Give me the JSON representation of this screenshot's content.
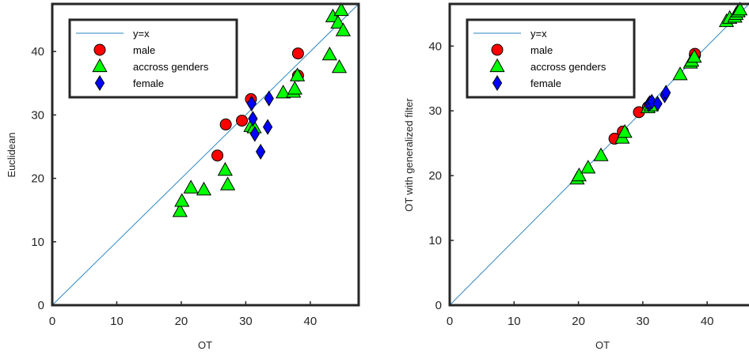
{
  "colors": {
    "identity_line": "#2E86C1",
    "male": "#FF0000",
    "across": "#00FF00",
    "female": "#0000FF",
    "axes": "#262626"
  },
  "chart_data": [
    {
      "type": "scatter",
      "xlabel": "OT",
      "ylabel": "Euclidean",
      "xlim": [
        0,
        47.5
      ],
      "ylim": [
        0,
        47.5
      ],
      "xticks": [
        0,
        10,
        20,
        30,
        40
      ],
      "yticks": [
        0,
        10,
        20,
        30,
        40
      ],
      "legend_position": "top-left",
      "series": [
        {
          "name": "y=x",
          "kind": "line",
          "points": [
            [
              0,
              0
            ],
            [
              47.5,
              47.5
            ]
          ]
        },
        {
          "name": "male",
          "kind": "circle",
          "points": [
            [
              25.6,
              23.6
            ],
            [
              26.9,
              28.5
            ],
            [
              29.4,
              29.1
            ],
            [
              30.8,
              32.5
            ],
            [
              38.1,
              36.2
            ],
            [
              38.1,
              39.7
            ]
          ]
        },
        {
          "name": "accross genders",
          "kind": "triangle",
          "points": [
            [
              19.8,
              14.8
            ],
            [
              20.1,
              16.4
            ],
            [
              21.5,
              18.5
            ],
            [
              23.5,
              18.2
            ],
            [
              26.8,
              21.3
            ],
            [
              27.2,
              19.0
            ],
            [
              30.8,
              28.2
            ],
            [
              31.3,
              28.0
            ],
            [
              35.8,
              33.5
            ],
            [
              37.4,
              33.6
            ],
            [
              37.6,
              34.1
            ],
            [
              38.0,
              36.2
            ],
            [
              43.0,
              39.5
            ],
            [
              43.5,
              45.5
            ],
            [
              44.3,
              44.5
            ],
            [
              44.5,
              37.5
            ],
            [
              44.8,
              46.5
            ],
            [
              45.1,
              43.3
            ]
          ]
        },
        {
          "name": "female",
          "kind": "diamond",
          "points": [
            [
              30.9,
              31.8
            ],
            [
              31.1,
              29.4
            ],
            [
              31.4,
              27.0
            ],
            [
              32.3,
              24.2
            ],
            [
              33.4,
              28.1
            ],
            [
              33.6,
              32.6
            ]
          ]
        }
      ]
    },
    {
      "type": "scatter",
      "xlabel": "OT",
      "ylabel": "OT with generalized filter",
      "xlim": [
        0,
        46.5
      ],
      "ylim": [
        0,
        46.5
      ],
      "xticks": [
        0,
        10,
        20,
        30,
        40
      ],
      "yticks": [
        0,
        10,
        20,
        30,
        40
      ],
      "legend_position": "top-left",
      "series": [
        {
          "name": "y=x",
          "kind": "line",
          "points": [
            [
              0,
              0
            ],
            [
              46.5,
              46.5
            ]
          ]
        },
        {
          "name": "male",
          "kind": "circle",
          "points": [
            [
              25.6,
              25.7
            ],
            [
              26.9,
              26.8
            ],
            [
              29.4,
              29.8
            ],
            [
              30.8,
              30.6
            ],
            [
              38.1,
              38.6
            ],
            [
              38.1,
              38.8
            ]
          ]
        },
        {
          "name": "accross genders",
          "kind": "triangle",
          "points": [
            [
              19.8,
              19.5
            ],
            [
              20.1,
              20.0
            ],
            [
              21.5,
              21.2
            ],
            [
              23.5,
              23.1
            ],
            [
              26.8,
              25.8
            ],
            [
              27.2,
              26.7
            ],
            [
              30.8,
              30.5
            ],
            [
              31.3,
              30.8
            ],
            [
              35.8,
              35.6
            ],
            [
              37.4,
              37.4
            ],
            [
              37.6,
              37.7
            ],
            [
              38.0,
              38.3
            ],
            [
              43.0,
              43.8
            ],
            [
              43.5,
              44.3
            ],
            [
              44.3,
              44.5
            ],
            [
              44.5,
              44.9
            ],
            [
              44.8,
              45.3
            ],
            [
              45.1,
              45.6
            ]
          ]
        },
        {
          "name": "female",
          "kind": "diamond",
          "points": [
            [
              30.9,
              31.0
            ],
            [
              31.1,
              31.2
            ],
            [
              31.4,
              31.4
            ],
            [
              32.3,
              31.1
            ],
            [
              33.4,
              32.4
            ],
            [
              33.6,
              32.8
            ]
          ]
        }
      ]
    }
  ]
}
